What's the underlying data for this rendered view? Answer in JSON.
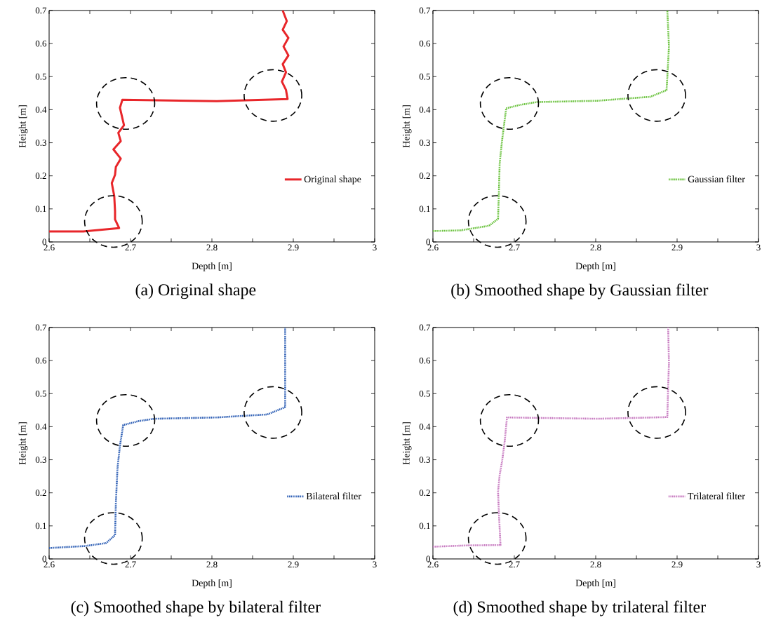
{
  "chart_data": [
    {
      "type": "line",
      "title": "(a) Original shape",
      "xlabel": "Depth [m]",
      "ylabel": "Height [m]",
      "legend": "right",
      "line_style": "solid",
      "xlim": [
        2.6,
        3
      ],
      "ylim": [
        0,
        0.7
      ],
      "xticks": [
        2.6,
        {
          "value": 2.65,
          "label": null
        },
        2.7,
        {
          "value": 2.75,
          "label": null
        },
        2.8,
        {
          "value": 2.85,
          "label": null
        },
        2.9,
        {
          "value": 2.95,
          "label": null
        },
        3
      ],
      "yticks": [
        0,
        0.1,
        0.2,
        0.3,
        0.4,
        0.5,
        0.6,
        0.7
      ],
      "series": [
        {
          "name": "Original shape",
          "color": "#e8262a",
          "x": [
            2.6,
            2.642,
            2.686,
            2.681,
            2.681,
            2.68,
            2.677,
            2.681,
            2.682,
            2.688,
            2.679,
            2.688,
            2.685,
            2.692,
            2.687,
            2.69,
            2.806,
            2.893,
            2.891,
            2.886,
            2.891,
            2.887,
            2.894,
            2.888,
            2.894,
            2.887,
            2.892,
            2.887
          ],
          "values": [
            0.032,
            0.032,
            0.042,
            0.068,
            0.093,
            0.139,
            0.178,
            0.203,
            0.227,
            0.252,
            0.28,
            0.305,
            0.33,
            0.353,
            0.406,
            0.43,
            0.426,
            0.432,
            0.46,
            0.485,
            0.513,
            0.538,
            0.564,
            0.591,
            0.617,
            0.642,
            0.668,
            0.7
          ]
        }
      ]
    },
    {
      "type": "line",
      "title": "(b) Smoothed shape by Gaussian filter",
      "xlabel": "Depth [m]",
      "ylabel": "Height [m]",
      "legend": "right",
      "line_style": "dotted",
      "xlim": [
        2.6,
        3
      ],
      "ylim": [
        0,
        0.7
      ],
      "xticks": [
        2.6,
        {
          "value": 2.65,
          "label": null
        },
        2.7,
        {
          "value": 2.75,
          "label": null
        },
        2.8,
        {
          "value": 2.85,
          "label": null
        },
        2.9,
        {
          "value": 2.95,
          "label": null
        },
        3
      ],
      "yticks": [
        0,
        0.1,
        0.2,
        0.3,
        0.4,
        0.5,
        0.6,
        0.7
      ],
      "series": [
        {
          "name": "Gaussian filter",
          "color": "#6ac23d",
          "x": [
            2.6,
            2.634,
            2.669,
            2.68,
            2.681,
            2.682,
            2.685,
            2.687,
            2.69,
            2.706,
            2.727,
            2.802,
            2.839,
            2.867,
            2.887,
            2.888,
            2.89,
            2.888
          ],
          "values": [
            0.033,
            0.035,
            0.049,
            0.07,
            0.146,
            0.238,
            0.308,
            0.347,
            0.404,
            0.414,
            0.423,
            0.427,
            0.434,
            0.439,
            0.459,
            0.499,
            0.591,
            0.7
          ]
        }
      ]
    },
    {
      "type": "line",
      "title": "(c) Smoothed shape by bilateral filter",
      "xlabel": "Depth [m]",
      "ylabel": "Height [m]",
      "legend": "right",
      "line_style": "dotted",
      "xlim": [
        2.6,
        3
      ],
      "ylim": [
        0,
        0.7
      ],
      "xticks": [
        2.6,
        {
          "value": 2.65,
          "label": null
        },
        2.7,
        {
          "value": 2.75,
          "label": null
        },
        2.8,
        {
          "value": 2.85,
          "label": null
        },
        2.9,
        {
          "value": 2.95,
          "label": null
        },
        3
      ],
      "yticks": [
        0,
        0.1,
        0.2,
        0.3,
        0.4,
        0.5,
        0.6,
        0.7
      ],
      "series": [
        {
          "name": "Bilateral filter",
          "color": "#2e5fb5",
          "x": [
            2.6,
            2.644,
            2.67,
            2.681,
            2.682,
            2.684,
            2.687,
            2.691,
            2.71,
            2.729,
            2.806,
            2.84,
            2.868,
            2.89,
            2.89
          ],
          "values": [
            0.033,
            0.039,
            0.048,
            0.072,
            0.169,
            0.275,
            0.342,
            0.405,
            0.417,
            0.424,
            0.428,
            0.433,
            0.437,
            0.459,
            0.7
          ]
        }
      ]
    },
    {
      "type": "line",
      "title": "(d) Smoothed shape by trilateral filter",
      "xlabel": "Depth [m]",
      "ylabel": "Height [m]",
      "legend": "right",
      "line_style": "dotted",
      "xlim": [
        2.6,
        3
      ],
      "ylim": [
        0,
        0.7
      ],
      "xticks": [
        2.6,
        {
          "value": 2.65,
          "label": null
        },
        2.7,
        {
          "value": 2.75,
          "label": null
        },
        2.8,
        {
          "value": 2.85,
          "label": null
        },
        2.9,
        {
          "value": 2.95,
          "label": null
        },
        3
      ],
      "yticks": [
        0,
        0.1,
        0.2,
        0.3,
        0.4,
        0.5,
        0.6,
        0.7
      ],
      "series": [
        {
          "name": "Trilateral filter",
          "color": "#c77ac0",
          "x": [
            2.6,
            2.643,
            2.683,
            2.681,
            2.68,
            2.682,
            2.685,
            2.688,
            2.691,
            2.802,
            2.888,
            2.889,
            2.89,
            2.889
          ],
          "values": [
            0.037,
            0.041,
            0.042,
            0.141,
            0.204,
            0.254,
            0.296,
            0.352,
            0.428,
            0.424,
            0.429,
            0.522,
            0.592,
            0.7
          ]
        }
      ]
    }
  ]
}
